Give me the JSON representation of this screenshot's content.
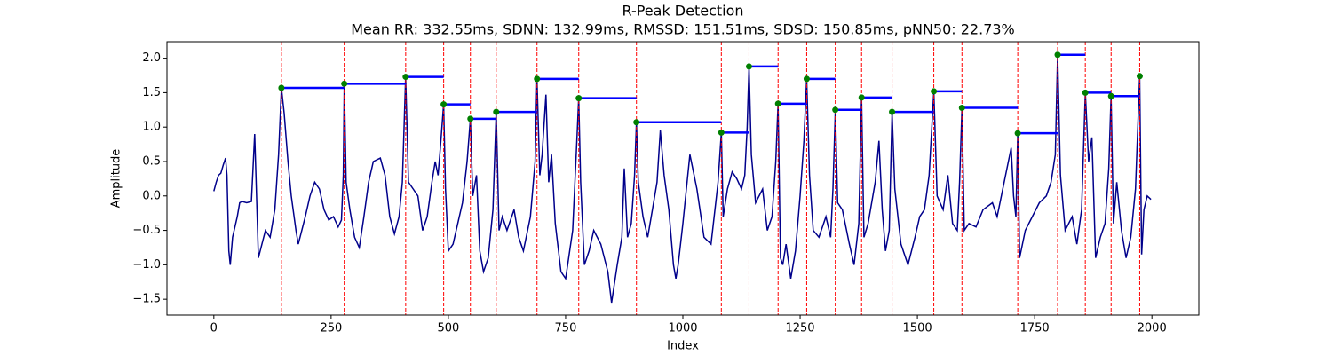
{
  "chart_data": {
    "type": "line",
    "title": "R-Peak Detection",
    "subtitle": "Mean RR: 332.55ms, SDNN: 132.99ms, RMSSD: 151.51ms, SDSD: 150.85ms, pNN50: 22.73%",
    "x_label": "Index",
    "y_label": "Amplitude",
    "xlim": [
      -100,
      2100
    ],
    "ylim": [
      -1.73,
      2.24
    ],
    "xticks": [
      0,
      250,
      500,
      750,
      1000,
      1250,
      1500,
      1750,
      2000
    ],
    "yticks": [
      {
        "value": -1.5,
        "label": "−1.5"
      },
      {
        "value": -1.0,
        "label": "−1.0"
      },
      {
        "value": -0.5,
        "label": "−0.5"
      },
      {
        "value": 0.0,
        "label": "0.0"
      },
      0.5,
      {
        "value": 1.0,
        "label": "1.0"
      },
      1.5,
      {
        "value": 2.0,
        "label": "2.0"
      }
    ],
    "grid": false,
    "signal_color": "#00008b",
    "peak_line_color": "#ff0000",
    "peak_color": "#008000",
    "rr_color": "#0000ff",
    "signal": {
      "x": [
        0,
        5,
        10,
        15,
        20,
        25,
        28,
        32,
        35,
        40,
        50,
        55,
        60,
        70,
        80,
        87,
        95,
        110,
        120,
        130,
        138,
        144,
        150,
        158,
        165,
        175,
        180,
        195,
        205,
        215,
        225,
        235,
        245,
        255,
        265,
        272,
        276,
        278,
        282,
        290,
        300,
        310,
        320,
        330,
        340,
        355,
        365,
        375,
        385,
        395,
        402,
        409,
        415,
        425,
        435,
        445,
        455,
        465,
        472,
        478,
        483,
        490,
        494,
        500,
        510,
        520,
        530,
        540,
        547,
        552,
        560,
        567,
        575,
        585,
        595,
        602,
        608,
        615,
        625,
        640,
        650,
        660,
        675,
        685,
        689,
        695,
        700,
        708,
        714,
        720,
        728,
        740,
        750,
        765,
        774,
        778,
        782,
        790,
        800,
        810,
        825,
        840,
        848,
        860,
        870,
        875,
        882,
        890,
        897,
        901,
        905,
        915,
        925,
        935,
        945,
        952,
        960,
        970,
        980,
        985,
        990,
        1000,
        1015,
        1030,
        1045,
        1060,
        1070,
        1075,
        1082,
        1086,
        1095,
        1105,
        1115,
        1125,
        1132,
        1137,
        1141,
        1146,
        1155,
        1170,
        1180,
        1190,
        1198,
        1203,
        1208,
        1213,
        1220,
        1230,
        1240,
        1250,
        1258,
        1264,
        1270,
        1278,
        1290,
        1305,
        1315,
        1320,
        1325,
        1330,
        1340,
        1355,
        1365,
        1375,
        1381,
        1386,
        1395,
        1410,
        1418,
        1425,
        1432,
        1440,
        1446,
        1452,
        1465,
        1480,
        1495,
        1505,
        1515,
        1525,
        1535,
        1542,
        1555,
        1565,
        1575,
        1585,
        1590,
        1595,
        1600,
        1610,
        1625,
        1640,
        1660,
        1670,
        1685,
        1700,
        1705,
        1710,
        1714,
        1718,
        1730,
        1745,
        1760,
        1775,
        1785,
        1794,
        1799,
        1805,
        1815,
        1830,
        1840,
        1850,
        1858,
        1865,
        1872,
        1880,
        1890,
        1900,
        1908,
        1913,
        1918,
        1925,
        1935,
        1945,
        1955,
        1965,
        1974,
        1978,
        1983,
        1990,
        1998
      ],
      "values": [
        0.07,
        0.2,
        0.3,
        0.33,
        0.45,
        0.55,
        0.3,
        -0.8,
        -1.0,
        -0.6,
        -0.3,
        -0.1,
        -0.08,
        -0.1,
        -0.08,
        0.9,
        -0.9,
        -0.5,
        -0.6,
        -0.2,
        0.6,
        1.57,
        1.2,
        0.5,
        0.0,
        -0.5,
        -0.7,
        -0.3,
        0.0,
        0.2,
        0.1,
        -0.2,
        -0.35,
        -0.3,
        -0.45,
        -0.35,
        0.3,
        1.63,
        0.2,
        -0.2,
        -0.6,
        -0.75,
        -0.3,
        0.2,
        0.5,
        0.55,
        0.3,
        -0.3,
        -0.55,
        -0.3,
        0.2,
        1.73,
        0.2,
        0.1,
        0.0,
        -0.5,
        -0.3,
        0.2,
        0.5,
        0.3,
        0.7,
        1.33,
        0.1,
        -0.8,
        -0.7,
        -0.4,
        -0.1,
        0.5,
        1.12,
        0.0,
        0.3,
        -0.8,
        -1.1,
        -0.9,
        -0.2,
        1.22,
        -0.5,
        -0.3,
        -0.5,
        -0.2,
        -0.6,
        -0.8,
        -0.3,
        0.5,
        1.7,
        0.3,
        0.6,
        1.47,
        0.2,
        0.6,
        -0.4,
        -1.1,
        -1.2,
        -0.5,
        0.8,
        1.42,
        0.2,
        -1.0,
        -0.8,
        -0.5,
        -0.7,
        -1.1,
        -1.55,
        -1.0,
        -0.6,
        0.4,
        -0.6,
        -0.4,
        0.3,
        1.07,
        0.2,
        -0.3,
        -0.6,
        -0.2,
        0.2,
        0.95,
        0.3,
        -0.2,
        -1.0,
        -1.2,
        -1.0,
        -0.4,
        0.6,
        0.1,
        -0.6,
        -0.7,
        -0.1,
        0.2,
        0.92,
        -0.3,
        0.1,
        0.35,
        0.25,
        0.1,
        0.3,
        1.0,
        1.88,
        0.6,
        -0.1,
        0.1,
        -0.5,
        -0.3,
        0.5,
        1.34,
        -0.9,
        -1.0,
        -0.7,
        -1.2,
        -0.8,
        0.0,
        0.8,
        1.7,
        0.3,
        -0.5,
        -0.6,
        -0.3,
        -0.6,
        0.1,
        1.25,
        -0.1,
        -0.2,
        -0.7,
        -1.0,
        -0.4,
        1.43,
        -0.6,
        -0.4,
        0.2,
        0.8,
        -0.2,
        -0.8,
        -0.5,
        1.22,
        0.1,
        -0.7,
        -1.0,
        -0.6,
        -0.3,
        -0.2,
        0.3,
        1.52,
        0.0,
        -0.2,
        0.3,
        -0.4,
        -0.5,
        0.2,
        1.28,
        -0.5,
        -0.4,
        -0.45,
        -0.2,
        -0.1,
        -0.3,
        0.2,
        0.7,
        0.0,
        -0.3,
        0.91,
        -0.9,
        -0.5,
        -0.3,
        -0.1,
        0.0,
        0.2,
        0.6,
        2.05,
        0.3,
        -0.5,
        -0.3,
        -0.7,
        -0.2,
        1.5,
        0.5,
        0.85,
        -0.9,
        -0.6,
        -0.4,
        0.4,
        1.45,
        -0.4,
        0.2,
        -0.5,
        -0.9,
        -0.6,
        0.1,
        1.74,
        -0.85,
        -0.2,
        0.0,
        -0.05
      ]
    },
    "peaks": {
      "x": [
        144,
        278,
        409,
        490,
        547,
        602,
        689,
        778,
        901,
        1082,
        1141,
        1203,
        1264,
        1325,
        1381,
        1446,
        1535,
        1595,
        1714,
        1799,
        1858,
        1913,
        1974
      ],
      "values": [
        1.57,
        1.63,
        1.73,
        1.33,
        1.12,
        1.22,
        1.7,
        1.42,
        1.07,
        0.92,
        1.88,
        1.34,
        1.7,
        1.25,
        1.43,
        1.22,
        1.52,
        1.28,
        0.91,
        2.05,
        1.5,
        1.45,
        1.74
      ]
    }
  }
}
